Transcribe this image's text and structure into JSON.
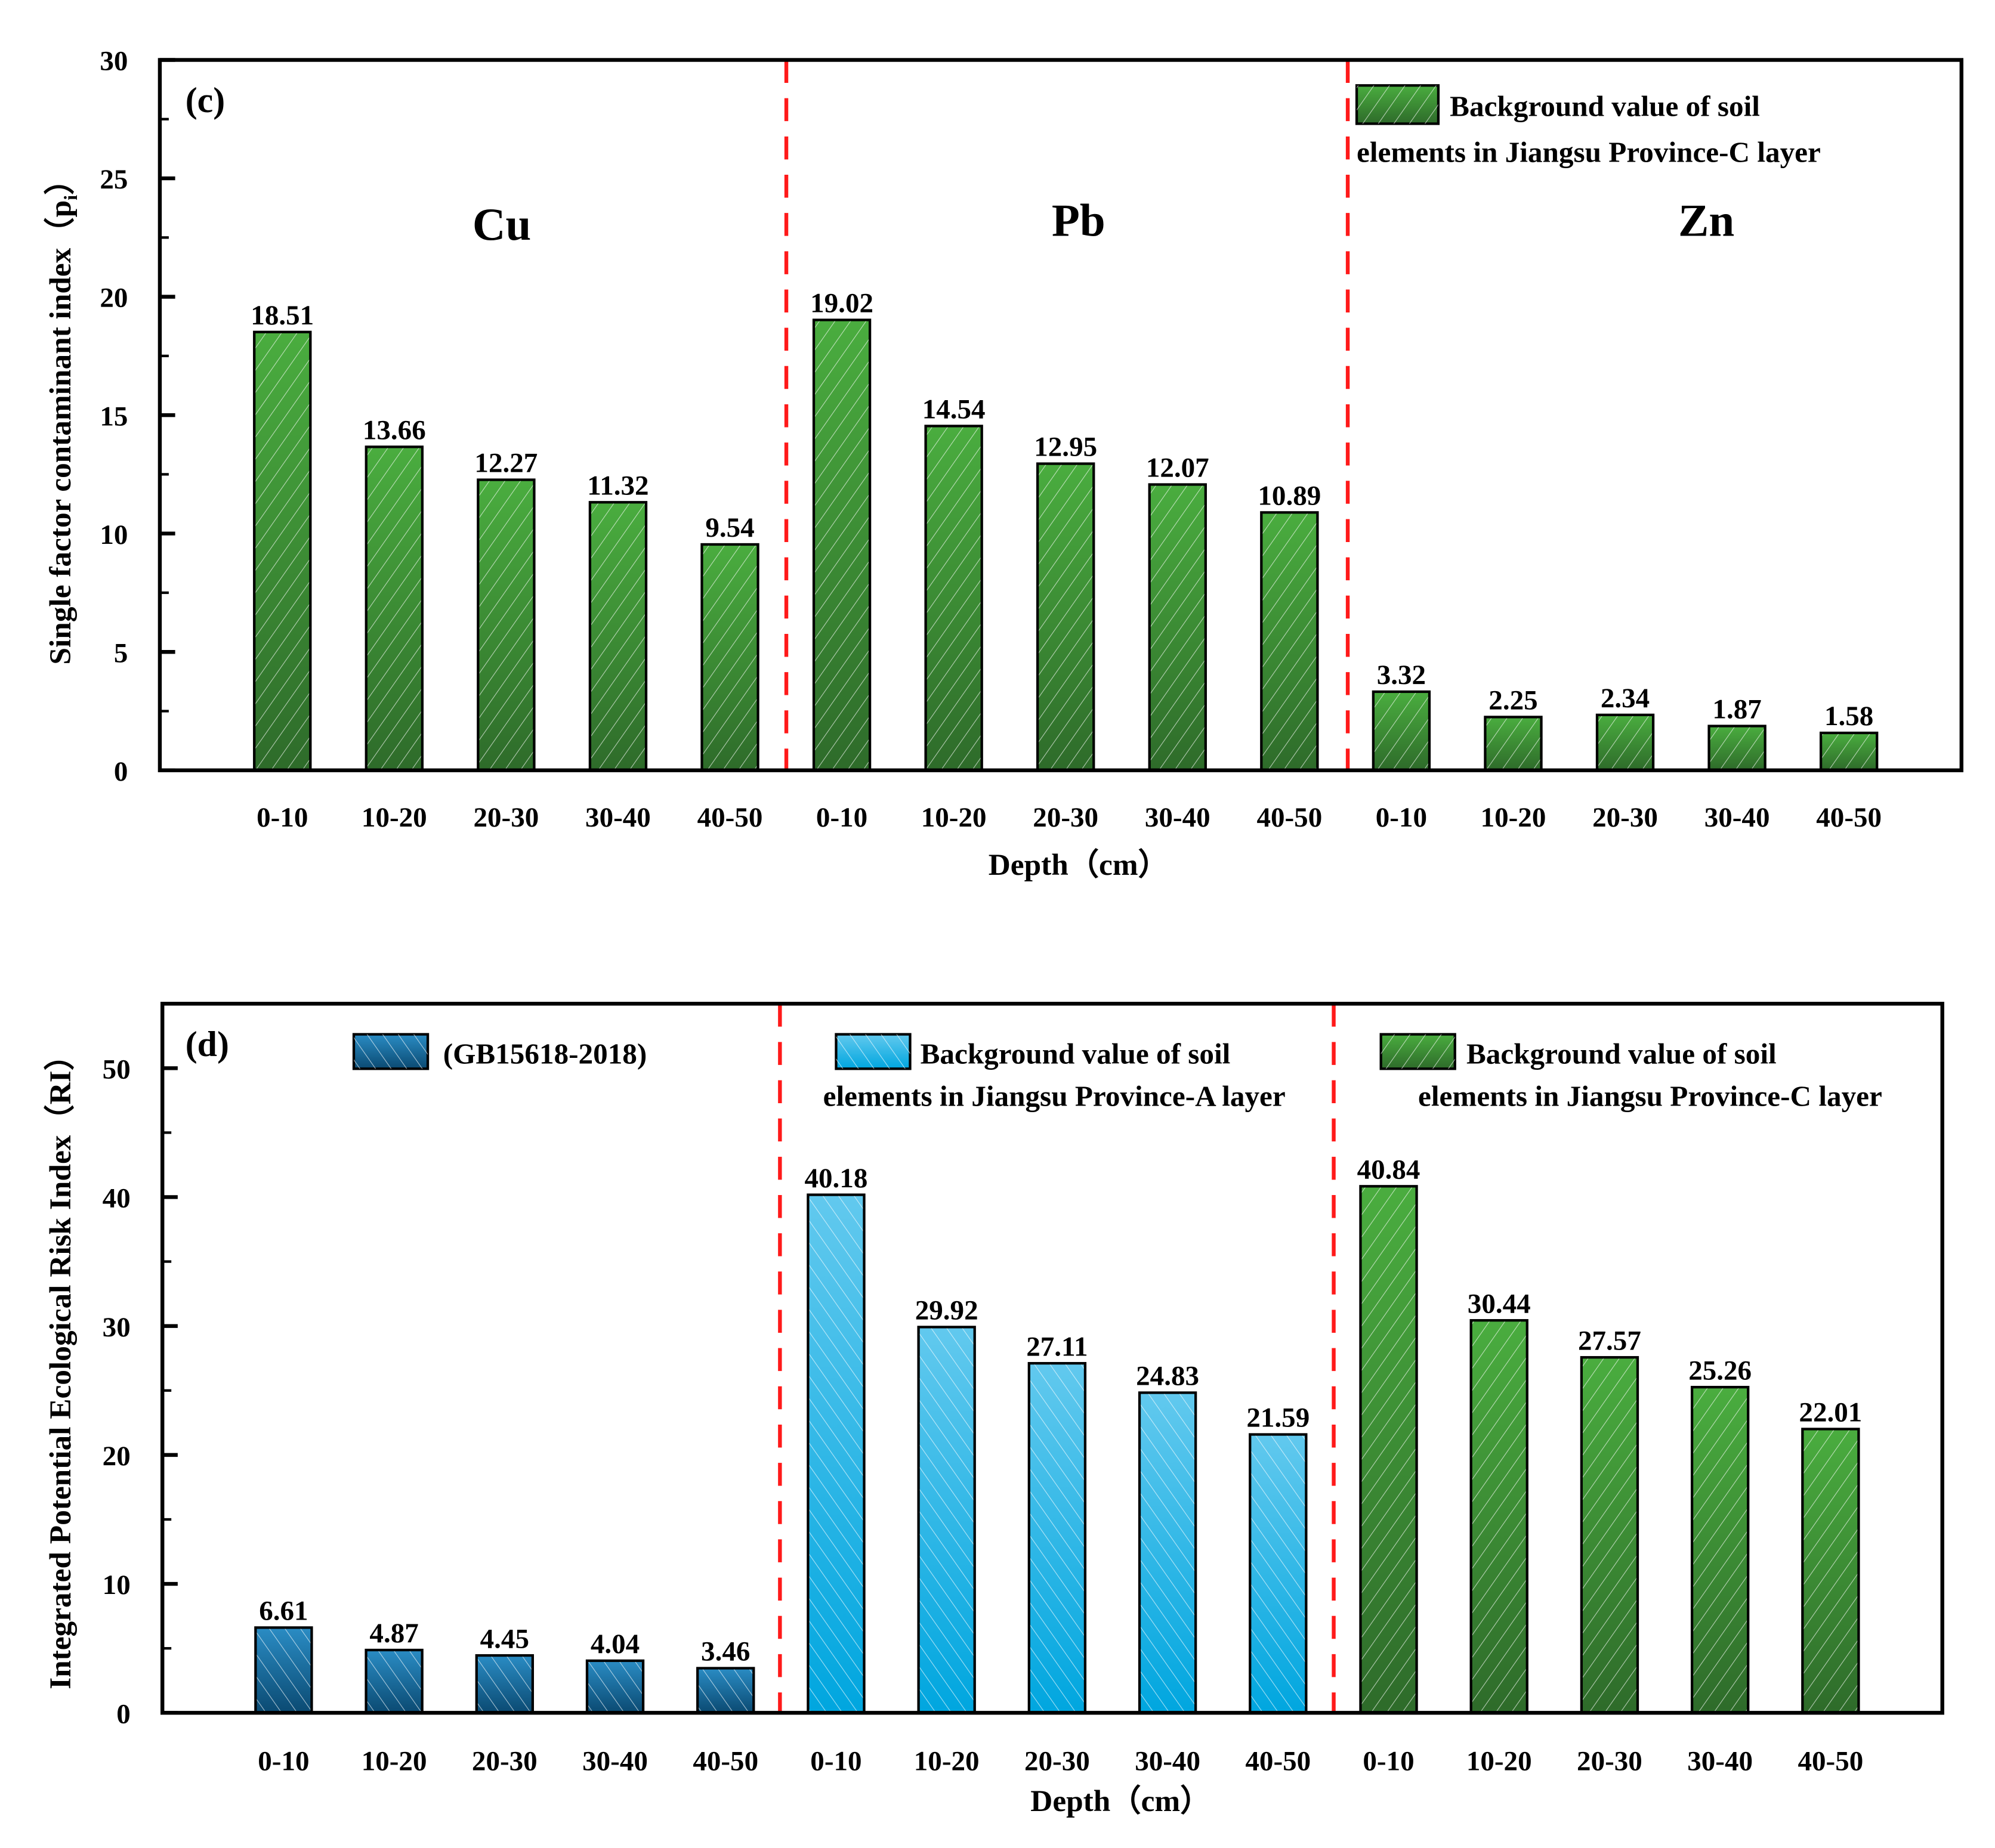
{
  "chart_data": [
    {
      "type": "bar",
      "panel": "(c)",
      "ylabel": "Single factor contaminant index（p",
      "ylabel_sub": "i",
      "ylabel_close": "）",
      "xlabel": "Depth（cm）",
      "ylim": [
        0,
        30
      ],
      "yticks": [
        0,
        5,
        10,
        15,
        20,
        25,
        30
      ],
      "grid": false,
      "groups": [
        "Cu",
        "Pb",
        "Zn"
      ],
      "categories": [
        "0-10",
        "10-20",
        "20-30",
        "30-40",
        "40-50",
        "0-10",
        "10-20",
        "20-30",
        "30-40",
        "40-50",
        "0-10",
        "10-20",
        "20-30",
        "30-40",
        "40-50"
      ],
      "values": [
        18.51,
        13.66,
        12.27,
        11.32,
        9.54,
        19.02,
        14.54,
        12.95,
        12.07,
        10.89,
        3.32,
        2.25,
        2.34,
        1.87,
        1.58
      ],
      "value_labels": [
        "18.51",
        "13.66",
        "12.27",
        "11.32",
        "9.54",
        "19.02",
        "14.54",
        "12.95",
        "12.07",
        "10.89",
        "3.32",
        "2.25",
        "2.34",
        "1.87",
        "1.58"
      ],
      "series_per_bar": [
        "green",
        "green",
        "green",
        "green",
        "green",
        "green",
        "green",
        "green",
        "green",
        "green",
        "green",
        "green",
        "green",
        "green",
        "green"
      ],
      "legend": [
        {
          "line1": "Background value of soil",
          "line2": "elements in Jiangsu Province-C layer",
          "style": "green"
        }
      ],
      "legend_placement": "top-right"
    },
    {
      "type": "bar",
      "panel": "(d)",
      "ylabel": "Integrated Potential Ecological Risk Index（RI）",
      "xlabel": "Depth（cm）",
      "ylim": [
        0,
        55
      ],
      "yticks": [
        0,
        10,
        20,
        30,
        40,
        50
      ],
      "grid": false,
      "categories": [
        "0-10",
        "10-20",
        "20-30",
        "30-40",
        "40-50",
        "0-10",
        "10-20",
        "20-30",
        "30-40",
        "40-50",
        "0-10",
        "10-20",
        "20-30",
        "30-40",
        "40-50"
      ],
      "values": [
        6.61,
        4.87,
        4.45,
        4.04,
        3.46,
        40.18,
        29.92,
        27.11,
        24.83,
        21.59,
        40.84,
        30.44,
        27.57,
        25.26,
        22.01
      ],
      "value_labels": [
        "6.61",
        "4.87",
        "4.45",
        "4.04",
        "3.46",
        "40.18",
        "29.92",
        "27.11",
        "24.83",
        "21.59",
        "40.84",
        "30.44",
        "27.57",
        "25.26",
        "22.01"
      ],
      "series_per_bar": [
        "darkblue",
        "darkblue",
        "darkblue",
        "darkblue",
        "darkblue",
        "lightblue",
        "lightblue",
        "lightblue",
        "lightblue",
        "lightblue",
        "green",
        "green",
        "green",
        "green",
        "green"
      ],
      "legend": [
        {
          "line1": "(GB15618-2018)",
          "line2": "",
          "style": "darkblue"
        },
        {
          "line1": "Background value of soil",
          "line2": "elements in Jiangsu Province-A layer",
          "style": "lightblue"
        },
        {
          "line1": "Background value of soil",
          "line2": "elements in Jiangsu Province-C layer",
          "style": "green"
        }
      ],
      "legend_placement": "top"
    }
  ],
  "colors": {
    "green_top": "#4aad3f",
    "green_bottom": "#2e6b2a",
    "darkblue_top": "#2a8cc4",
    "darkblue_bottom": "#0b4a72",
    "lightblue_top": "#62c9ee",
    "lightblue_bottom": "#00a6df",
    "divider": "#ff1a1a"
  }
}
